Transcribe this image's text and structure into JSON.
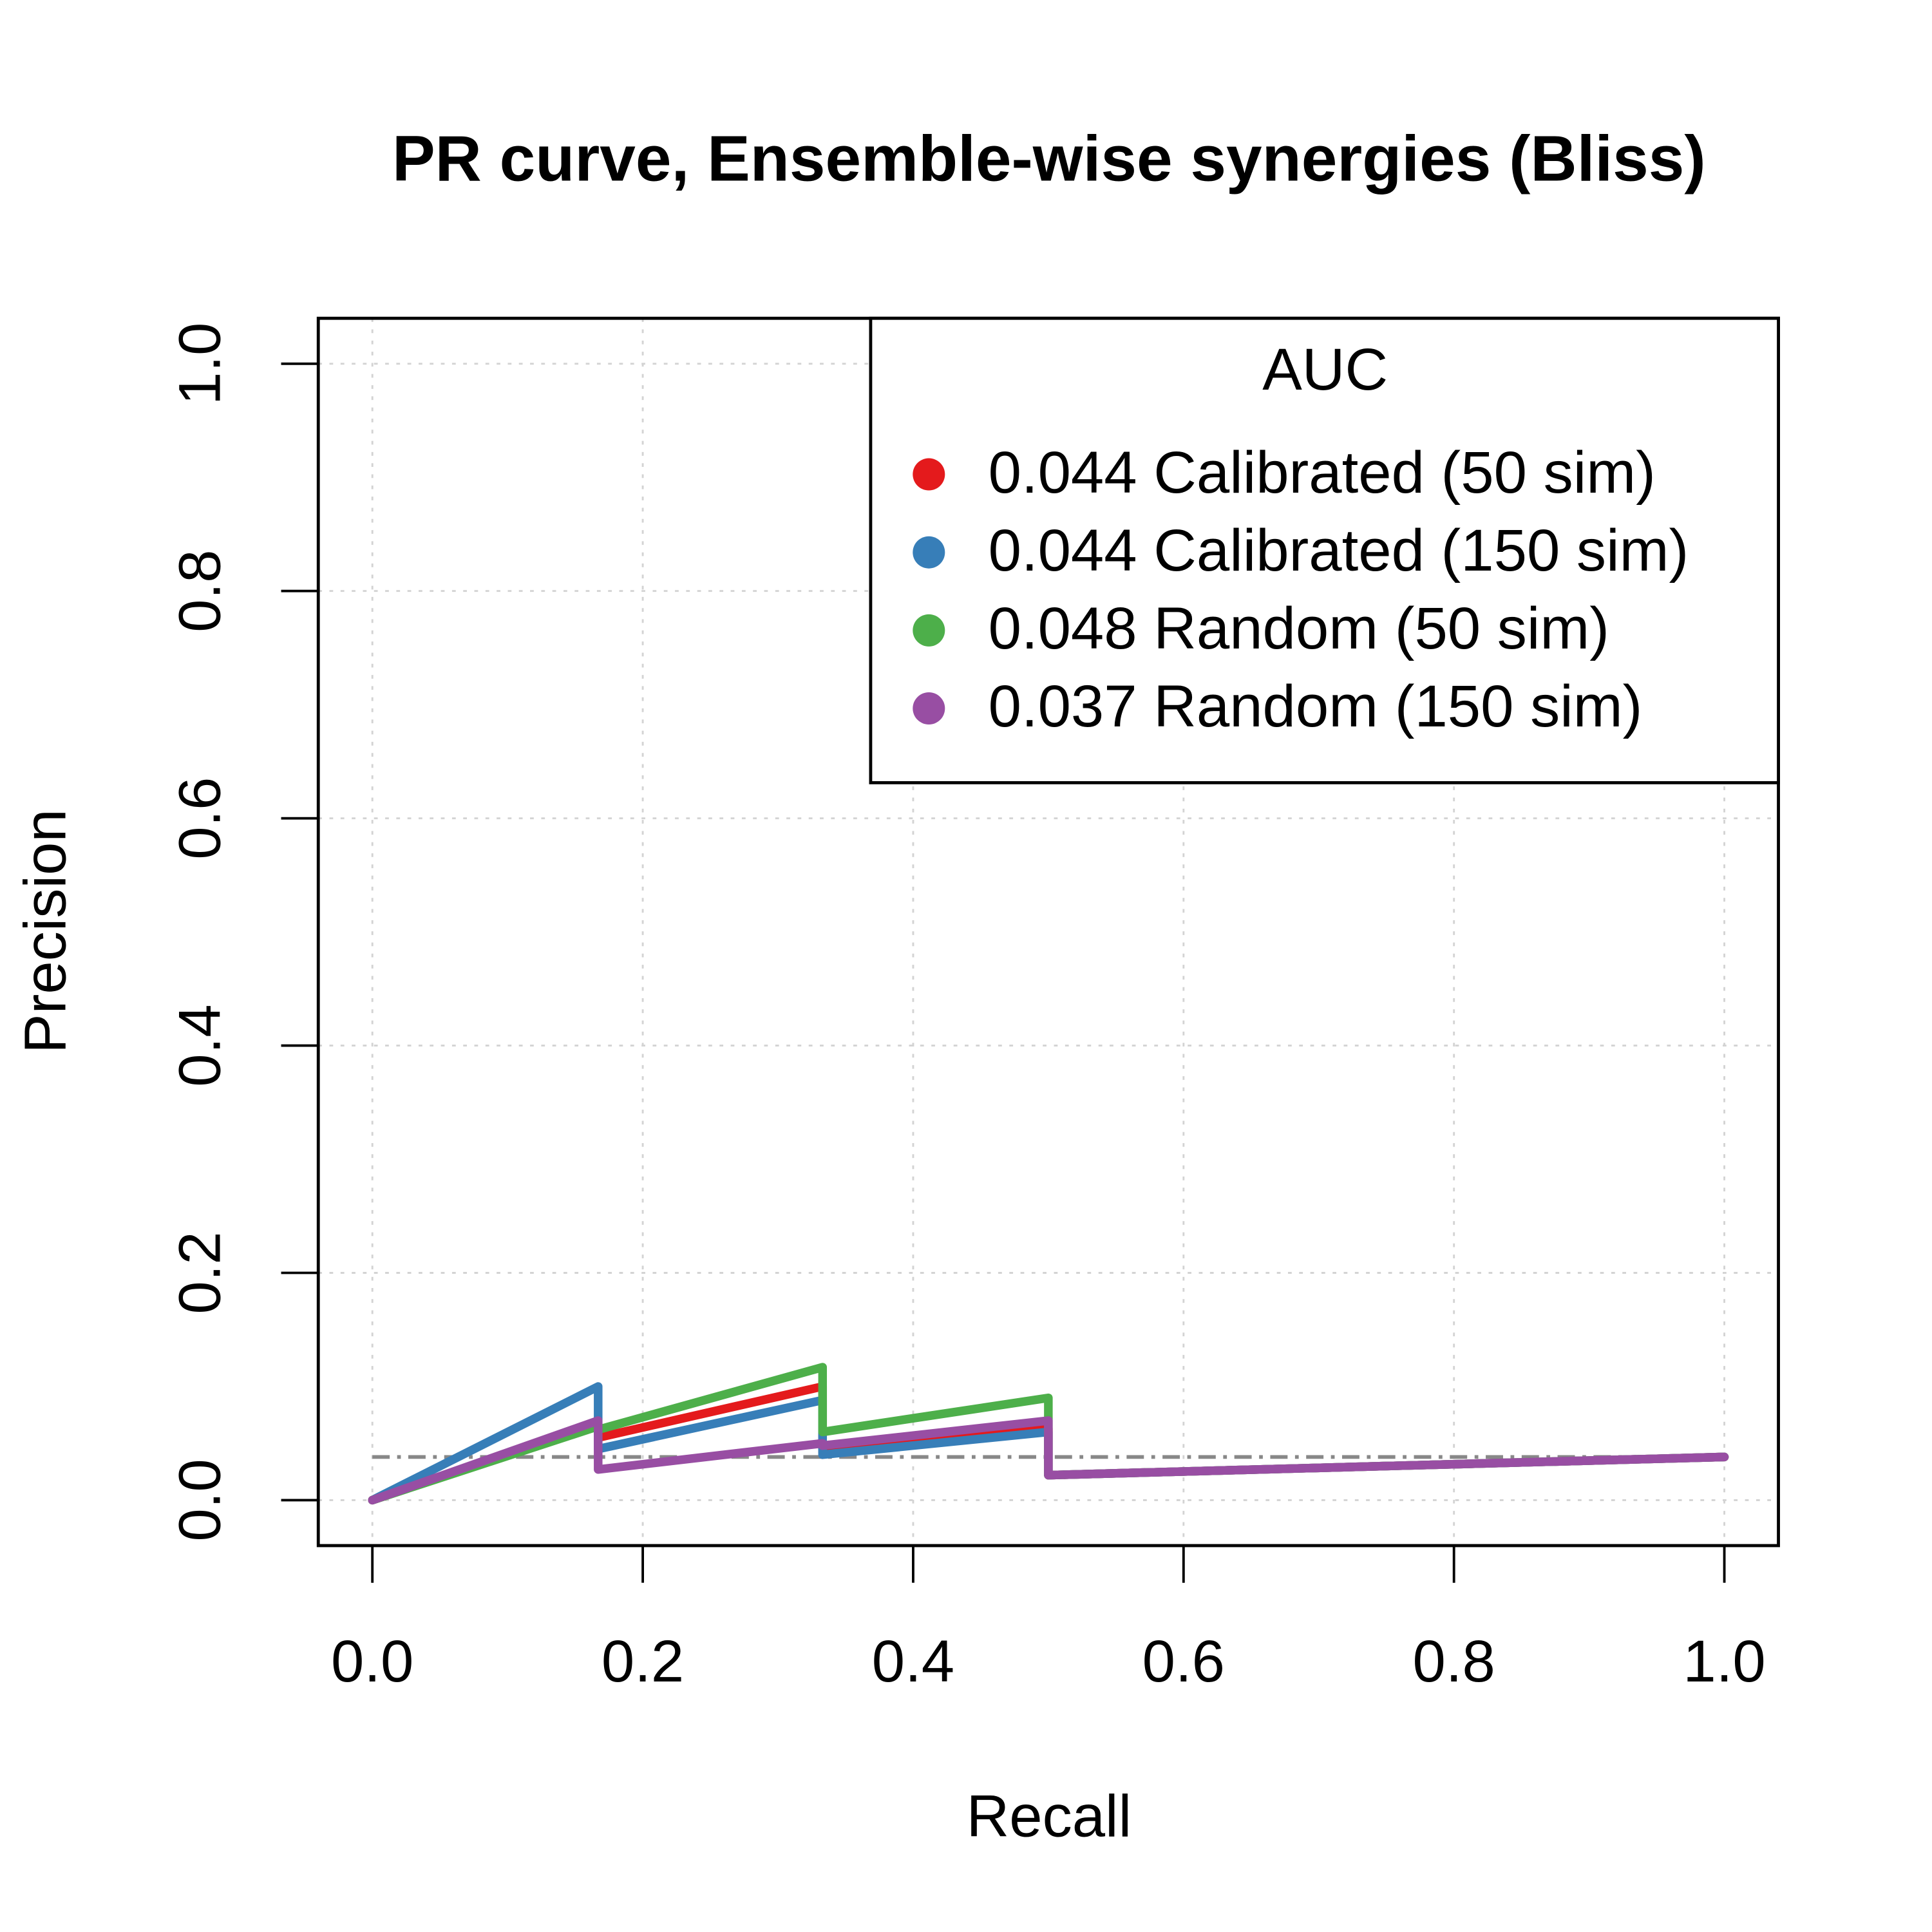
{
  "chart_data": {
    "type": "line",
    "title": "PR curve, Ensemble-wise synergies (Bliss)",
    "x_label": "Recall",
    "y_label": "Precision",
    "xlim": [
      -0.04,
      1.04
    ],
    "ylim": [
      -0.04,
      1.04
    ],
    "xticks": [
      {
        "value": 0,
        "label": "0.0"
      },
      0.2,
      0.4,
      0.6,
      0.8,
      {
        "value": 1,
        "label": "1.0"
      }
    ],
    "yticks": [
      {
        "value": 0,
        "label": "0.0"
      },
      0.2,
      0.4,
      0.6,
      0.8,
      {
        "value": 1,
        "label": "1.0"
      }
    ],
    "grid": true,
    "legend_title": "AUC",
    "legend_position": "top-right",
    "baseline": 0.038,
    "baseline_color": "#888888",
    "series": [
      {
        "name": "0.044 Calibrated (50 sim)",
        "color": "#E41A1C",
        "x": [
          0,
          0.167,
          0.167,
          0.333,
          0.333,
          0.5,
          0.5,
          1
        ],
        "values": [
          0,
          0.067,
          0.055,
          0.1,
          0.042,
          0.063,
          0.022,
          0.038
        ]
      },
      {
        "name": "0.044 Calibrated (150 sim)",
        "color": "#377EB8",
        "x": [
          0,
          0.167,
          0.167,
          0.333,
          0.333,
          0.5,
          0.5,
          1
        ],
        "values": [
          0,
          0.1,
          0.045,
          0.088,
          0.04,
          0.06,
          0.022,
          0.038
        ]
      },
      {
        "name": "0.048 Random (50 sim)",
        "color": "#4DAF4A",
        "x": [
          0,
          0.167,
          0.167,
          0.333,
          0.333,
          0.5,
          0.5,
          1
        ],
        "values": [
          0,
          0.065,
          0.062,
          0.117,
          0.06,
          0.09,
          0.022,
          0.038
        ]
      },
      {
        "name": "0.037 Random (150 sim)",
        "color": "#984EA3",
        "x": [
          0,
          0.167,
          0.167,
          0.333,
          0.333,
          0.5,
          0.5,
          1
        ],
        "values": [
          0,
          0.07,
          0.027,
          0.05,
          0.048,
          0.07,
          0.022,
          0.038
        ]
      }
    ]
  }
}
